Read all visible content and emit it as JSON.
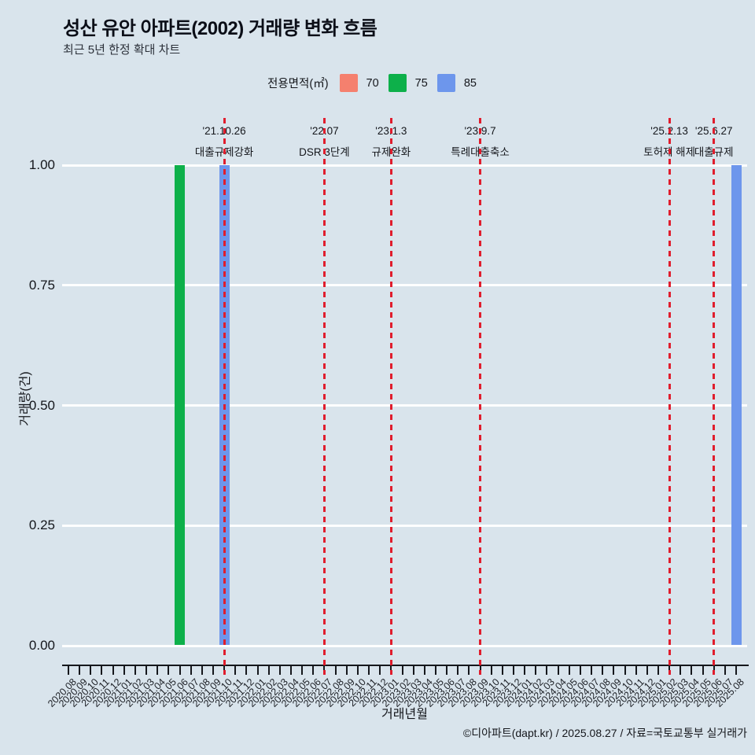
{
  "header": {
    "title": "성산 유안 아파트(2002) 거래량 변화 흐름",
    "subtitle": "최근 5년 한정 확대 차트"
  },
  "legend": {
    "title": "전용면적(㎡)",
    "items": [
      {
        "label": "70",
        "color": "#f5806e"
      },
      {
        "label": "75",
        "color": "#0db04a"
      },
      {
        "label": "85",
        "color": "#6d96ec"
      }
    ]
  },
  "footer": {
    "credit": "©디아파트(dapt.kr) / 2025.08.27 / 자료=국토교통부 실거래가"
  },
  "colors": {
    "background": "#d9e4ec",
    "gridline": "#fdfefe",
    "axis": "#15171c",
    "annotation_line": "#e01d2d"
  },
  "chart_data": {
    "type": "bar",
    "title": "성산 유안 아파트(2002) 거래량 변화 흐름",
    "xlabel": "거래년월",
    "ylabel": "거래량(건)",
    "ylim": [
      0,
      1
    ],
    "yticks": [
      "0.00",
      "0.25",
      "0.50",
      "0.75",
      "1.00"
    ],
    "grid": true,
    "legend_position": "top",
    "categories": [
      "2020.08",
      "2020.09",
      "2020.10",
      "2020.11",
      "2020.12",
      "2021.01",
      "2021.02",
      "2021.03",
      "2021.04",
      "2021.05",
      "2021.06",
      "2021.07",
      "2021.08",
      "2021.09",
      "2021.10",
      "2021.11",
      "2021.12",
      "2022.01",
      "2022.02",
      "2022.03",
      "2022.04",
      "2022.05",
      "2022.06",
      "2022.07",
      "2022.08",
      "2022.09",
      "2022.10",
      "2022.11",
      "2022.12",
      "2023.01",
      "2023.02",
      "2023.03",
      "2023.04",
      "2023.05",
      "2023.06",
      "2023.07",
      "2023.08",
      "2023.09",
      "2023.10",
      "2023.11",
      "2023.12",
      "2024.01",
      "2024.02",
      "2024.03",
      "2024.04",
      "2024.05",
      "2024.06",
      "2024.07",
      "2024.08",
      "2024.09",
      "2024.10",
      "2024.11",
      "2024.12",
      "2025.01",
      "2025.02",
      "2025.03",
      "2025.04",
      "2025.05",
      "2025.06",
      "2025.07",
      "2025.08"
    ],
    "series": [
      {
        "name": "70",
        "color": "#f5806e",
        "points": []
      },
      {
        "name": "75",
        "color": "#0db04a",
        "points": [
          {
            "x": "2021.06",
            "y": 1
          }
        ]
      },
      {
        "name": "85",
        "color": "#6d96ec",
        "points": [
          {
            "x": "2021.10",
            "y": 1
          },
          {
            "x": "2025.08",
            "y": 1
          }
        ]
      }
    ],
    "annotations": [
      {
        "date": "'21.10.26",
        "label": "대출규제강화",
        "x": "2021.10"
      },
      {
        "date": "'22.07",
        "label": "DSR 3단계",
        "x": "2022.07"
      },
      {
        "date": "'23.1.3",
        "label": "규제완화",
        "x": "2023.01"
      },
      {
        "date": "'23.9.7",
        "label": "특례대출축소",
        "x": "2023.09"
      },
      {
        "date": "'25.2.13",
        "label": "토허제 해제",
        "x": "2025.02"
      },
      {
        "date": "'25.6.27",
        "label": "대출규제",
        "x": "2025.06"
      }
    ]
  }
}
